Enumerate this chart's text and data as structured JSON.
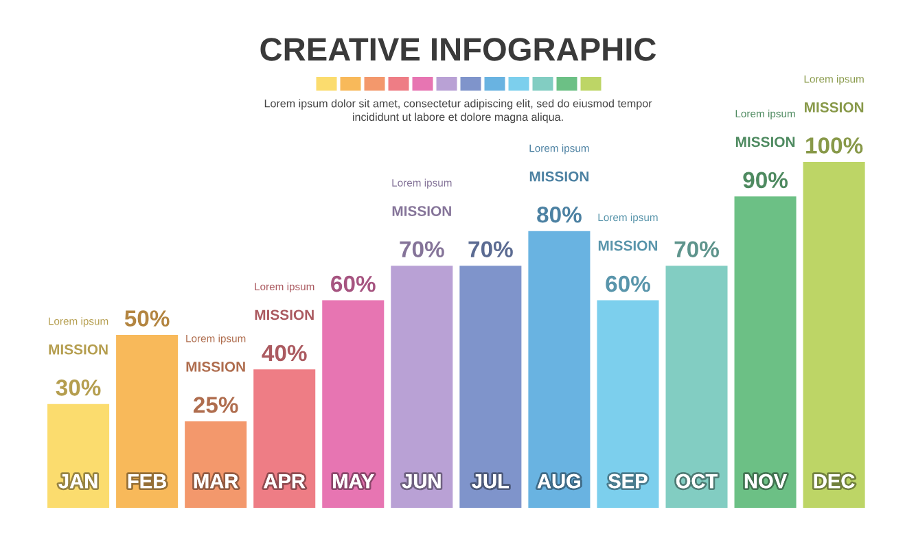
{
  "chart_data": {
    "type": "bar",
    "title": "CREATIVE INFOGRAPHIC",
    "subtitle": "Lorem ipsum dolor sit amet, consectetur adipiscing elit, sed do eiusmod tempor\nincididunt ut labore et dolore magna aliqua.",
    "categories": [
      "JAN",
      "FEB",
      "MAR",
      "APR",
      "MAY",
      "JUN",
      "JUL",
      "AUG",
      "SEP",
      "OCT",
      "NOV",
      "DEC"
    ],
    "values": [
      30,
      50,
      25,
      40,
      60,
      70,
      70,
      80,
      60,
      70,
      90,
      100
    ],
    "colors": [
      "#fbdc6e",
      "#f8b95a",
      "#f3986c",
      "#ee7d85",
      "#e775b2",
      "#b9a1d5",
      "#7f94cb",
      "#69b3e1",
      "#7ccfed",
      "#82cdc2",
      "#6cc085",
      "#bdd566"
    ],
    "value_labels": [
      "30%",
      "50%",
      "25%",
      "40%",
      "60%",
      "70%",
      "70%",
      "80%",
      "60%",
      "70%",
      "90%",
      "100%"
    ],
    "annotations": [
      "Lorem ipsum",
      "MISSION",
      "Lorem ipsum",
      "MISSION",
      "Lorem ipsum",
      "MISSION",
      "Lorem ipsum",
      "MISSION",
      "Lorem ipsum",
      "MISSION",
      "Lorem ipsum",
      "MISSION",
      "Lorem ipsum",
      "MISSION",
      "Lorem ipsum",
      "MISSION"
    ],
    "tick_labels": "x",
    "grid": false,
    "legend": false
  }
}
